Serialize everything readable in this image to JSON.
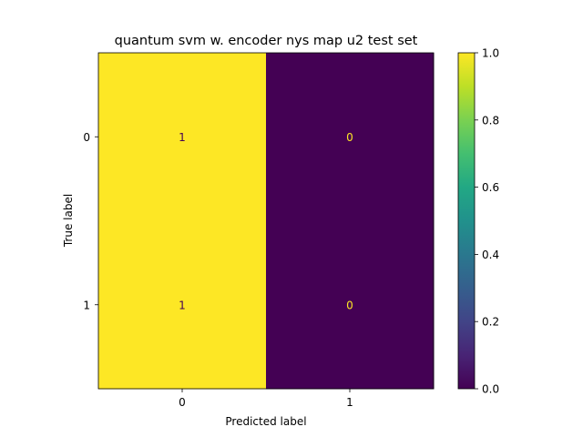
{
  "chart_data": {
    "type": "heatmap",
    "title": "quantum svm w. encoder nys map u2  test set",
    "xlabel": "Predicted label",
    "ylabel": "True label",
    "x_categories": [
      "0",
      "1"
    ],
    "y_categories": [
      "0",
      "1"
    ],
    "values": [
      [
        1,
        0
      ],
      [
        1,
        0
      ]
    ],
    "cell_labels": [
      [
        "1",
        "0"
      ],
      [
        "1",
        "0"
      ]
    ],
    "colormap": "viridis",
    "colorbar": {
      "range": [
        0.0,
        1.0
      ],
      "ticks": [
        "0.0",
        "0.2",
        "0.4",
        "0.6",
        "0.8",
        "1.0"
      ]
    },
    "colors": {
      "high": "#fde725",
      "low": "#440154",
      "label_on_high": "#440154",
      "label_on_low": "#fde725"
    }
  }
}
